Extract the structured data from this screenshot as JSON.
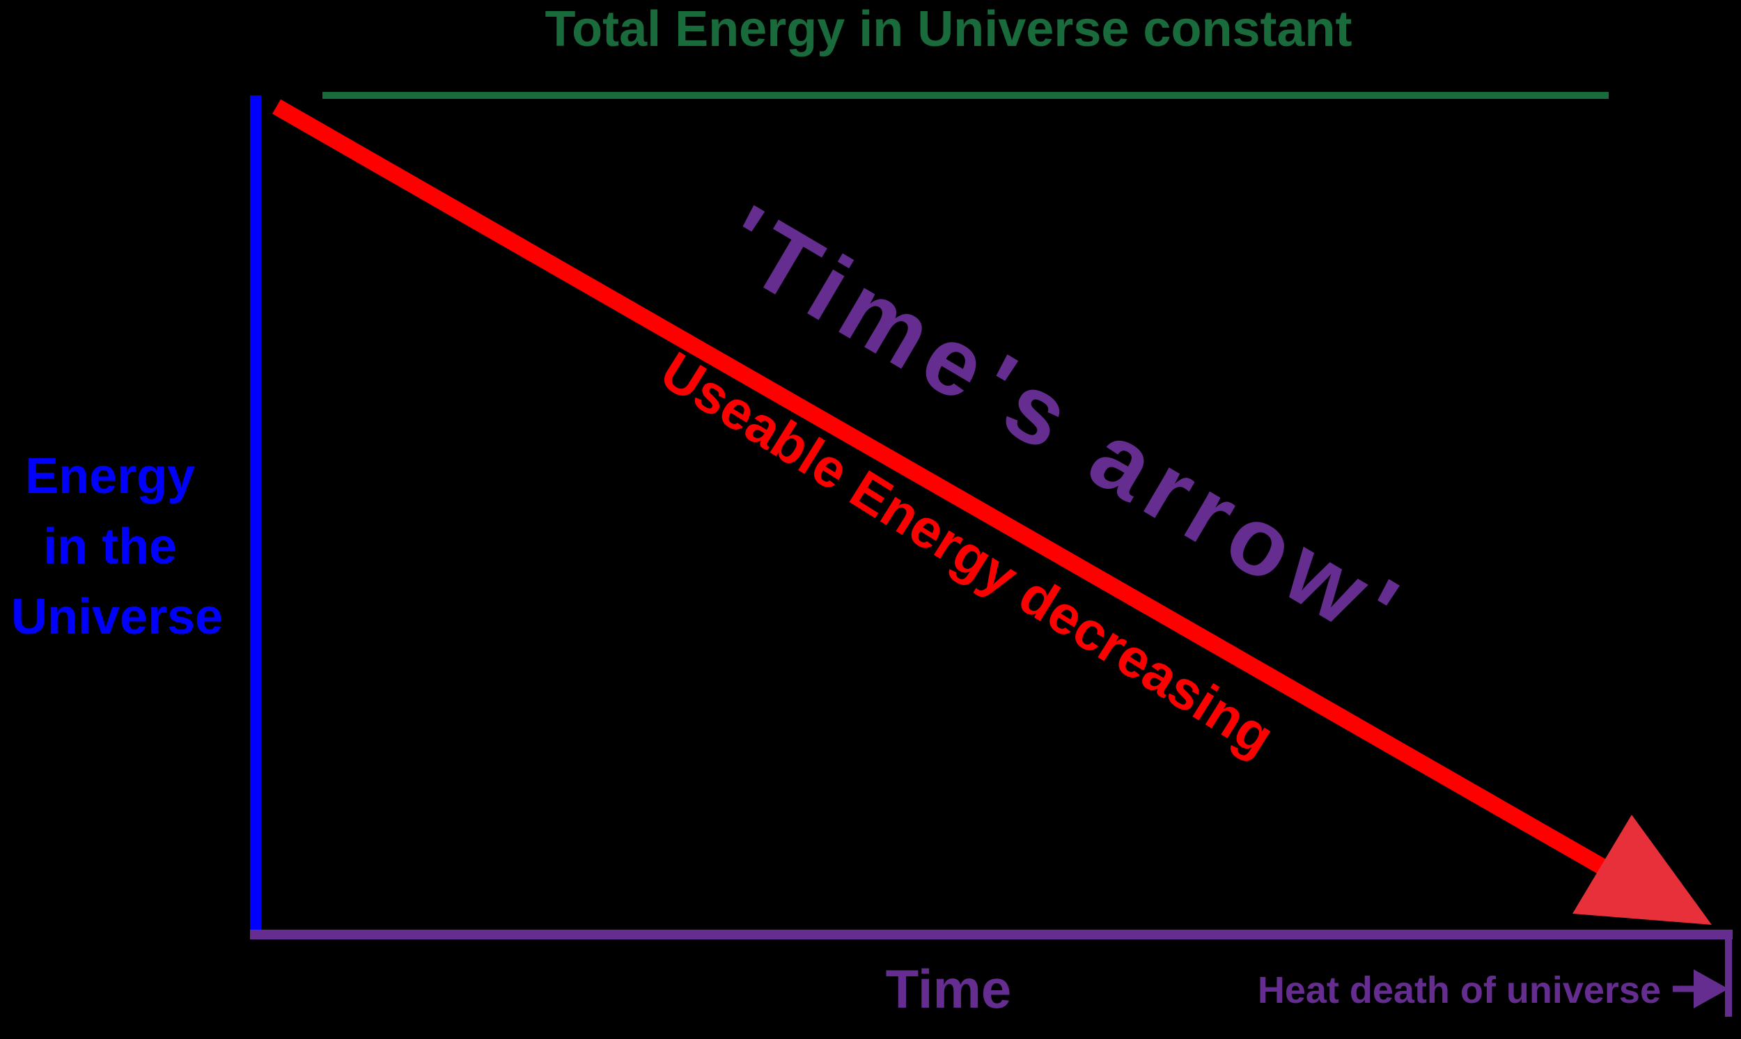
{
  "title": "Total Energy in Universe constant",
  "y_label": [
    "Energy",
    "in the",
    "Universe"
  ],
  "x_label": "Time",
  "end_label": "Heat death of universe",
  "diagonal_label": "Useable Energy decreasing",
  "arrow_label": "'Time's arrow'",
  "colors": {
    "background": "#000000",
    "total_energy": "#1a6b3c",
    "y_axis": "#0000ff",
    "x_axis": "#662d91",
    "useable_energy": "#ff0000",
    "arrowhead": "#e8303a",
    "times_arrow": "#662d91"
  }
}
